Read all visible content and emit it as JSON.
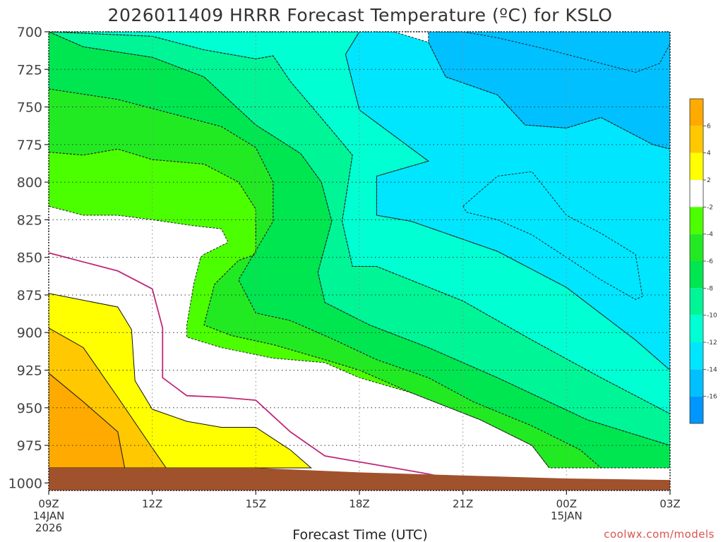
{
  "chart_data": {
    "type": "heatmap",
    "title": "2026011409 HRRR Forecast Temperature (ºC) for KSLO",
    "xlabel": "Forecast Time (UTC)",
    "ylabel": "",
    "x_ticks": [
      {
        "hour": 0,
        "label": "09Z",
        "sub1": "14JAN",
        "sub2": "2026"
      },
      {
        "hour": 3,
        "label": "12Z",
        "sub1": "",
        "sub2": ""
      },
      {
        "hour": 6,
        "label": "15Z",
        "sub1": "",
        "sub2": ""
      },
      {
        "hour": 9,
        "label": "18Z",
        "sub1": "",
        "sub2": ""
      },
      {
        "hour": 12,
        "label": "21Z",
        "sub1": "",
        "sub2": ""
      },
      {
        "hour": 15,
        "label": "00Z",
        "sub1": "15JAN",
        "sub2": ""
      },
      {
        "hour": 18,
        "label": "03Z",
        "sub1": "",
        "sub2": ""
      }
    ],
    "xlim": [
      0,
      18
    ],
    "y_ticks": [
      700,
      725,
      750,
      775,
      800,
      825,
      850,
      875,
      900,
      925,
      950,
      975,
      1000
    ],
    "ylim": [
      1000,
      700
    ],
    "y_unit": "hPa",
    "grid": true,
    "colorbar": {
      "labels": [
        6,
        4,
        2,
        -2,
        -4,
        -6,
        -8,
        -10,
        -12,
        -14,
        -16
      ],
      "bins": [
        {
          "range": [
            6,
            8
          ],
          "color": "#ffaa00"
        },
        {
          "range": [
            4,
            6
          ],
          "color": "#ffc800"
        },
        {
          "range": [
            2,
            4
          ],
          "color": "#ffff00"
        },
        {
          "range": [
            -2,
            2
          ],
          "color": "#ffffff"
        },
        {
          "range": [
            -4,
            -2
          ],
          "color": "#4cff00"
        },
        {
          "range": [
            -6,
            -4
          ],
          "color": "#22ea22"
        },
        {
          "range": [
            -8,
            -6
          ],
          "color": "#00e650"
        },
        {
          "range": [
            -10,
            -8
          ],
          "color": "#00f596"
        },
        {
          "range": [
            -12,
            -10
          ],
          "color": "#00ffd2"
        },
        {
          "range": [
            -14,
            -12
          ],
          "color": "#00e6ff"
        },
        {
          "range": [
            -16,
            -14
          ],
          "color": "#00c0ff"
        },
        {
          "range": [
            -18,
            -16
          ],
          "color": "#0096ff"
        }
      ]
    },
    "freezing_line_color": "#c0287a",
    "ground_color": "#a0522d",
    "isotherms": [
      {
        "value": -16,
        "color": "#0096ff",
        "points": [
          [
            12,
            700
          ],
          [
            13,
            704
          ],
          [
            14.5,
            712
          ],
          [
            16,
            721
          ],
          [
            17,
            727
          ],
          [
            17.7,
            721
          ],
          [
            18,
            708
          ],
          [
            18,
            700
          ]
        ]
      },
      {
        "value": -14,
        "color": "#00c0ff",
        "points": [
          [
            12,
            700
          ],
          [
            11,
            700
          ],
          [
            11,
            707
          ],
          [
            11.5,
            730
          ],
          [
            13,
            742
          ],
          [
            13.8,
            762
          ],
          [
            15,
            764
          ],
          [
            16,
            757
          ],
          [
            17.5,
            775
          ],
          [
            18,
            778
          ],
          [
            18,
            700
          ]
        ]
      },
      {
        "value": -14,
        "color": "#00c0ff",
        "points": [
          [
            12.0,
            816
          ],
          [
            13,
            796
          ],
          [
            14,
            793
          ],
          [
            15,
            822
          ],
          [
            16,
            834
          ],
          [
            17,
            848
          ],
          [
            17.2,
            876
          ],
          [
            17.0,
            878
          ],
          [
            16,
            865
          ],
          [
            14,
            835
          ],
          [
            13,
            825
          ],
          [
            12.1,
            820
          ],
          [
            12.0,
            816
          ]
        ]
      },
      {
        "value": -12,
        "color": "#00e6ff",
        "points": [
          [
            9,
            700
          ],
          [
            10,
            700
          ],
          [
            11,
            707
          ],
          [
            11.5,
            730
          ],
          [
            13,
            742
          ],
          [
            13.8,
            762
          ],
          [
            15,
            764
          ],
          [
            16,
            757
          ],
          [
            17.5,
            775
          ],
          [
            18,
            778
          ],
          [
            18,
            925
          ],
          [
            17,
            905
          ],
          [
            15,
            870
          ],
          [
            13,
            846
          ],
          [
            10.5,
            826
          ],
          [
            9.5,
            822
          ],
          [
            9.5,
            796
          ],
          [
            11.0,
            786
          ],
          [
            9.0,
            752
          ],
          [
            8.6,
            715
          ],
          [
            9,
            700
          ]
        ]
      },
      {
        "value": -10,
        "color": "#00ffd2",
        "points": [
          [
            0,
            700
          ],
          [
            6,
            700
          ],
          [
            9,
            700
          ],
          [
            8.6,
            715
          ],
          [
            9.0,
            752
          ],
          [
            11.0,
            786
          ],
          [
            9.5,
            796
          ],
          [
            9.5,
            822
          ],
          [
            10.5,
            826
          ],
          [
            13,
            846
          ],
          [
            15,
            870
          ],
          [
            17,
            905
          ],
          [
            18,
            925
          ],
          [
            18,
            954
          ],
          [
            16,
            930
          ],
          [
            14,
            905
          ],
          [
            12,
            879
          ],
          [
            9.5,
            856
          ],
          [
            8.8,
            856
          ],
          [
            8.5,
            826
          ],
          [
            8.8,
            782
          ],
          [
            8.0,
            760
          ],
          [
            7,
            733
          ],
          [
            6.5,
            716
          ],
          [
            6,
            718
          ],
          [
            4.5,
            712
          ],
          [
            3,
            703
          ],
          [
            0,
            700
          ]
        ]
      },
      {
        "value": -8,
        "color": "#00f596",
        "points": [
          [
            0,
            700
          ],
          [
            3,
            703
          ],
          [
            4.5,
            712
          ],
          [
            6,
            718
          ],
          [
            6.5,
            716
          ],
          [
            7,
            733
          ],
          [
            8,
            760
          ],
          [
            8.8,
            782
          ],
          [
            8.5,
            826
          ],
          [
            8.8,
            856
          ],
          [
            9.5,
            856
          ],
          [
            12,
            879
          ],
          [
            14,
            905
          ],
          [
            16,
            930
          ],
          [
            18,
            954
          ],
          [
            18,
            975
          ],
          [
            15.6,
            958
          ],
          [
            13,
            930
          ],
          [
            11,
            910
          ],
          [
            9.3,
            895
          ],
          [
            8,
            880
          ],
          [
            7.8,
            860
          ],
          [
            8.2,
            826
          ],
          [
            7.9,
            800
          ],
          [
            7.3,
            781
          ],
          [
            6.0,
            762
          ],
          [
            5.2,
            745
          ],
          [
            4.5,
            730
          ],
          [
            3,
            717
          ],
          [
            1,
            710
          ],
          [
            0,
            700
          ]
        ]
      },
      {
        "value": -6,
        "color": "#00e650",
        "points": [
          [
            0,
            738
          ],
          [
            2,
            745
          ],
          [
            3.5,
            754
          ],
          [
            5,
            763
          ],
          [
            6,
            777
          ],
          [
            6.5,
            800
          ],
          [
            6.5,
            826
          ],
          [
            5.5,
            865
          ],
          [
            6,
            887
          ],
          [
            7,
            892
          ],
          [
            8.2,
            904
          ],
          [
            9.5,
            918
          ],
          [
            11,
            930
          ],
          [
            12.3,
            946
          ],
          [
            14,
            962
          ],
          [
            15.4,
            978
          ],
          [
            16,
            990
          ],
          [
            18,
            990
          ],
          [
            18,
            975
          ],
          [
            15.6,
            958
          ],
          [
            13,
            930
          ],
          [
            11,
            910
          ],
          [
            9.3,
            895
          ],
          [
            8,
            880
          ],
          [
            7.8,
            860
          ],
          [
            8.2,
            826
          ],
          [
            7.9,
            800
          ],
          [
            7.3,
            781
          ],
          [
            6,
            762
          ],
          [
            5.2,
            745
          ],
          [
            4.5,
            730
          ],
          [
            3,
            717
          ],
          [
            1,
            710
          ],
          [
            0,
            700
          ],
          [
            0,
            738
          ]
        ]
      },
      {
        "value": -4,
        "color": "#22ea22",
        "points": [
          [
            0,
            780
          ],
          [
            1,
            782
          ],
          [
            2,
            778
          ],
          [
            3,
            785
          ],
          [
            4.5,
            788
          ],
          [
            5.5,
            800
          ],
          [
            6,
            818
          ],
          [
            6,
            848
          ],
          [
            5.5,
            852
          ],
          [
            4.8,
            868
          ],
          [
            4.5,
            895
          ],
          [
            5.3,
            902
          ],
          [
            6.5,
            908
          ],
          [
            8,
            918
          ],
          [
            9,
            925
          ],
          [
            10.5,
            940
          ],
          [
            12.5,
            958
          ],
          [
            14,
            975
          ],
          [
            14.5,
            990
          ],
          [
            16,
            990
          ],
          [
            15.4,
            978
          ],
          [
            14,
            962
          ],
          [
            12.3,
            946
          ],
          [
            11,
            930
          ],
          [
            9.5,
            918
          ],
          [
            8.2,
            904
          ],
          [
            7,
            892
          ],
          [
            6,
            887
          ],
          [
            5.5,
            865
          ],
          [
            6.5,
            826
          ],
          [
            6.5,
            800
          ],
          [
            6,
            777
          ],
          [
            5,
            763
          ],
          [
            3.5,
            754
          ],
          [
            2,
            745
          ],
          [
            0,
            738
          ],
          [
            0,
            780
          ]
        ]
      },
      {
        "value": -2,
        "color": "#4cff00",
        "points": [
          [
            0,
            816
          ],
          [
            1,
            822
          ],
          [
            2,
            822
          ],
          [
            3,
            825
          ],
          [
            4.2,
            829
          ],
          [
            5,
            831
          ],
          [
            5.2,
            840
          ],
          [
            4.5,
            848
          ],
          [
            4.4,
            850
          ],
          [
            4.2,
            868
          ],
          [
            4.0,
            895
          ],
          [
            4.0,
            903
          ],
          [
            5.0,
            910
          ],
          [
            6.5,
            917
          ],
          [
            8,
            920
          ],
          [
            9,
            930
          ],
          [
            10.5,
            940
          ],
          [
            12.5,
            958
          ],
          [
            14,
            975
          ],
          [
            14.5,
            990
          ],
          [
            14,
            975
          ],
          [
            12.5,
            958
          ],
          [
            10.5,
            940
          ],
          [
            9,
            925
          ],
          [
            8,
            918
          ],
          [
            6.5,
            908
          ],
          [
            5.3,
            902
          ],
          [
            4.5,
            895
          ],
          [
            4.8,
            868
          ],
          [
            5.5,
            852
          ],
          [
            6,
            848
          ],
          [
            6,
            818
          ],
          [
            5.5,
            800
          ],
          [
            4.5,
            788
          ],
          [
            3,
            785
          ],
          [
            2,
            778
          ],
          [
            1,
            782
          ],
          [
            0,
            780
          ],
          [
            0,
            816
          ]
        ]
      },
      {
        "value": 2,
        "color": "#ffff00",
        "points": [
          [
            0,
            874
          ],
          [
            2,
            883
          ],
          [
            2.4,
            898
          ],
          [
            2.5,
            932
          ],
          [
            3,
            951
          ],
          [
            4,
            959
          ],
          [
            5,
            963
          ],
          [
            6,
            963
          ],
          [
            7,
            978
          ],
          [
            7.6,
            990
          ],
          [
            7,
            990
          ],
          [
            6,
            990
          ],
          [
            5,
            990
          ],
          [
            3.5,
            990
          ],
          [
            3,
            990
          ],
          [
            2.6,
            990
          ],
          [
            2,
            990
          ],
          [
            1,
            990
          ],
          [
            0,
            990
          ],
          [
            0,
            874
          ]
        ]
      },
      {
        "value": 4,
        "color": "#ffc800",
        "points": [
          [
            0,
            897
          ],
          [
            1,
            910
          ],
          [
            2,
            943
          ],
          [
            2.8,
            970
          ],
          [
            3.4,
            990
          ],
          [
            0,
            990
          ],
          [
            0,
            897
          ]
        ]
      },
      {
        "value": 6,
        "color": "#ffaa00",
        "points": [
          [
            0,
            927
          ],
          [
            1,
            946
          ],
          [
            2,
            966
          ],
          [
            2.2,
            990
          ],
          [
            0,
            990
          ],
          [
            0,
            927
          ]
        ]
      }
    ],
    "freezing_line": [
      [
        0,
        847
      ],
      [
        2,
        859
      ],
      [
        3,
        871
      ],
      [
        3.3,
        897
      ],
      [
        3.3,
        930
      ],
      [
        4,
        942
      ],
      [
        5,
        943
      ],
      [
        6,
        945
      ],
      [
        7,
        966
      ],
      [
        8,
        982
      ],
      [
        9,
        986
      ],
      [
        10,
        990
      ],
      [
        11,
        994
      ],
      [
        12,
        999
      ]
    ],
    "ground": [
      [
        0,
        990
      ],
      [
        3,
        990
      ],
      [
        6,
        990
      ],
      [
        9,
        993
      ],
      [
        12,
        995
      ],
      [
        15,
        997
      ],
      [
        18,
        998
      ]
    ]
  },
  "credit": "coolwx.com/models"
}
